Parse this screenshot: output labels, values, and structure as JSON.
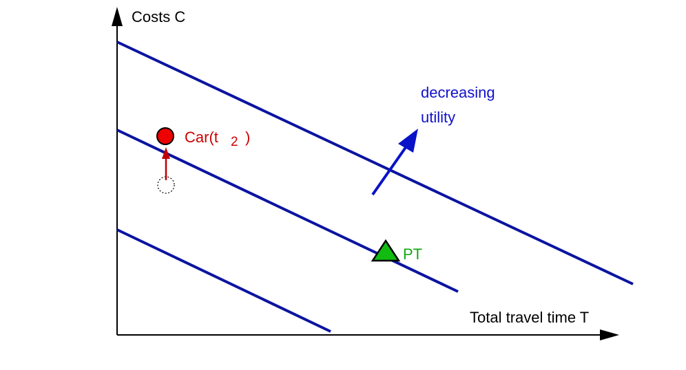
{
  "axes": {
    "y_label": "Costs C",
    "x_label": "Total travel time T"
  },
  "annotation": {
    "line1": "decreasing",
    "line2": "utility"
  },
  "car_label": {
    "prefix": "Car(t",
    "subscript": "2",
    "suffix": ")"
  },
  "pt_label": "PT",
  "colors": {
    "axis": "#000000",
    "indifference_line": "#0b14a0",
    "utility_arrow": "#0a12c8",
    "car": "#ee0000",
    "car_label": "#cc0000",
    "shift_arrow": "#c00000",
    "pt_fill": "#11bb11",
    "pt_label": "#11aa11"
  }
}
